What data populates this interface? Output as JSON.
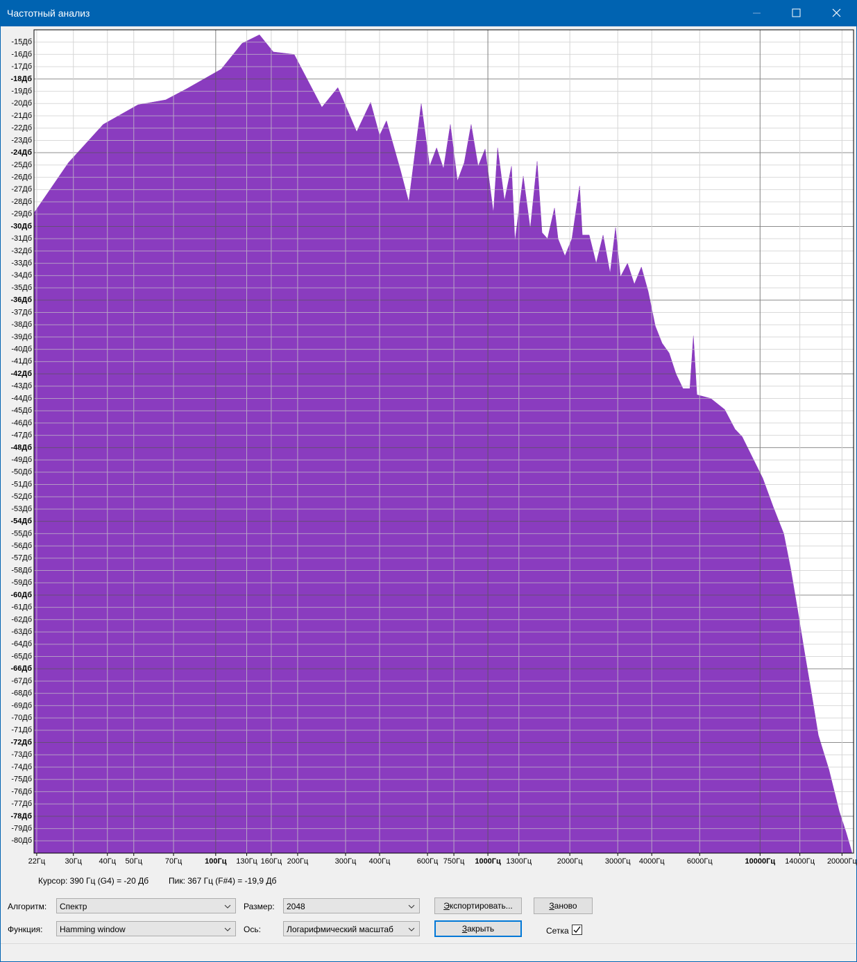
{
  "window": {
    "title": "Частотный анализ"
  },
  "chart_data": {
    "type": "area",
    "color": "#8a3cbf",
    "xscale": "log",
    "grid": true,
    "xlim": [
      21.5,
      22050
    ],
    "ylim": [
      -81,
      -14
    ],
    "xticks": [
      {
        "value": 22,
        "label": "22Гц"
      },
      {
        "value": 30,
        "label": "30Гц"
      },
      {
        "value": 40,
        "label": "40Гц"
      },
      {
        "value": 50,
        "label": "50Гц"
      },
      {
        "value": 70,
        "label": "70Гц"
      },
      {
        "value": 100,
        "label": "100Гц"
      },
      {
        "value": 130,
        "label": "130Гц"
      },
      {
        "value": 160,
        "label": "160Гц"
      },
      {
        "value": 200,
        "label": "200Гц"
      },
      {
        "value": 300,
        "label": "300Гц"
      },
      {
        "value": 400,
        "label": "400Гц"
      },
      {
        "value": 600,
        "label": "600Гц"
      },
      {
        "value": 750,
        "label": "750Гц"
      },
      {
        "value": 1000,
        "label": "1000Гц"
      },
      {
        "value": 1300,
        "label": "1300Гц"
      },
      {
        "value": 2000,
        "label": "2000Гц"
      },
      {
        "value": 3000,
        "label": "3000Гц"
      },
      {
        "value": 4000,
        "label": "4000Гц"
      },
      {
        "value": 6000,
        "label": "6000Гц"
      },
      {
        "value": 10000,
        "label": "10000Гц"
      },
      {
        "value": 14000,
        "label": "14000Гц"
      },
      {
        "value": 20000,
        "label": "20000Гц"
      }
    ],
    "yticks": [
      {
        "value": -15,
        "label": "-15Дб"
      },
      {
        "value": -16,
        "label": "-16Дб"
      },
      {
        "value": -17,
        "label": "-17Дб"
      },
      {
        "value": -18,
        "label": "-18Дб"
      },
      {
        "value": -19,
        "label": "-19Дб"
      },
      {
        "value": -20,
        "label": "-20Дб"
      },
      {
        "value": -21,
        "label": "-21Дб"
      },
      {
        "value": -22,
        "label": "-22Дб"
      },
      {
        "value": -23,
        "label": "-23Дб"
      },
      {
        "value": -24,
        "label": "-24Дб"
      },
      {
        "value": -25,
        "label": "-25Дб"
      },
      {
        "value": -26,
        "label": "-26Дб"
      },
      {
        "value": -27,
        "label": "-27Дб"
      },
      {
        "value": -28,
        "label": "-28Дб"
      },
      {
        "value": -29,
        "label": "-29Дб"
      },
      {
        "value": -30,
        "label": "-30Дб"
      },
      {
        "value": -31,
        "label": "-31Дб"
      },
      {
        "value": -32,
        "label": "-32Дб"
      },
      {
        "value": -33,
        "label": "-33Дб"
      },
      {
        "value": -34,
        "label": "-34Дб"
      },
      {
        "value": -35,
        "label": "-35Дб"
      },
      {
        "value": -36,
        "label": "-36Дб"
      },
      {
        "value": -37,
        "label": "-37Дб"
      },
      {
        "value": -38,
        "label": "-38Дб"
      },
      {
        "value": -39,
        "label": "-39Дб"
      },
      {
        "value": -40,
        "label": "-40Дб"
      },
      {
        "value": -41,
        "label": "-41Дб"
      },
      {
        "value": -42,
        "label": "-42Дб"
      },
      {
        "value": -43,
        "label": "-43Дб"
      },
      {
        "value": -44,
        "label": "-44Дб"
      },
      {
        "value": -45,
        "label": "-45Дб"
      },
      {
        "value": -46,
        "label": "-46Дб"
      },
      {
        "value": -47,
        "label": "-47Дб"
      },
      {
        "value": -48,
        "label": "-48Дб"
      },
      {
        "value": -49,
        "label": "-49Дб"
      },
      {
        "value": -50,
        "label": "-50Дб"
      },
      {
        "value": -51,
        "label": "-51Дб"
      },
      {
        "value": -52,
        "label": "-52Дб"
      },
      {
        "value": -53,
        "label": "-53Дб"
      },
      {
        "value": -54,
        "label": "-54Дб"
      },
      {
        "value": -55,
        "label": "-55Дб"
      },
      {
        "value": -56,
        "label": "-56Дб"
      },
      {
        "value": -57,
        "label": "-57Дб"
      },
      {
        "value": -58,
        "label": "-58Дб"
      },
      {
        "value": -59,
        "label": "-59Дб"
      },
      {
        "value": -60,
        "label": "-60Дб"
      },
      {
        "value": -61,
        "label": "-61Дб"
      },
      {
        "value": -62,
        "label": "-62Дб"
      },
      {
        "value": -63,
        "label": "-63Дб"
      },
      {
        "value": -64,
        "label": "-64Дб"
      },
      {
        "value": -65,
        "label": "-65Дб"
      },
      {
        "value": -66,
        "label": "-66Дб"
      },
      {
        "value": -67,
        "label": "-67Дб"
      },
      {
        "value": -68,
        "label": "-68Дб"
      },
      {
        "value": -69,
        "label": "-69Дб"
      },
      {
        "value": -70,
        "label": "-70Дб"
      },
      {
        "value": -71,
        "label": "-71Дб"
      },
      {
        "value": -72,
        "label": "-72Дб"
      },
      {
        "value": -73,
        "label": "-73Дб"
      },
      {
        "value": -74,
        "label": "-74Дб"
      },
      {
        "value": -75,
        "label": "-75Дб"
      },
      {
        "value": -76,
        "label": "-76Дб"
      },
      {
        "value": -77,
        "label": "-77Дб"
      },
      {
        "value": -78,
        "label": "-78Дб"
      },
      {
        "value": -79,
        "label": "-79Дб"
      },
      {
        "value": -80,
        "label": "-80Дб"
      }
    ],
    "x": [
      21.5,
      28.8,
      38.6,
      51.8,
      65.5,
      78.2,
      104.8,
      125,
      144.8,
      162.8,
      194.2,
      245.5,
      281,
      329.6,
      370.7,
      400,
      424,
      477,
      512,
      569,
      611,
      648,
      687,
      728,
      773,
      819,
      868,
      921,
      977,
      1048,
      1086,
      1151,
      1221,
      1257,
      1349,
      1431,
      1517,
      1581,
      1656,
      1757,
      1810,
      1919,
      2036,
      2173,
      2223,
      2356,
      2500,
      2650,
      2812,
      2945,
      3069,
      3258,
      3452,
      3664,
      3882,
      4121,
      4365,
      4634,
      4910,
      5212,
      5521,
      5689,
      5861,
      6592,
      7413,
      8091,
      8590,
      9376,
      10233,
      11169,
      12218,
      12942,
      13740,
      14555,
      15453,
      16368,
      17906,
      19543,
      20701,
      21727
    ],
    "values": [
      -28.9,
      -24.8,
      -21.7,
      -20.1,
      -19.7,
      -18.8,
      -17.2,
      -15.1,
      -14.4,
      -15.8,
      -16.0,
      -20.3,
      -18.7,
      -22.3,
      -19.9,
      -22.6,
      -21.4,
      -25.4,
      -28.0,
      -20.0,
      -25.1,
      -23.6,
      -25.3,
      -21.7,
      -26.3,
      -24.8,
      -21.7,
      -25.1,
      -23.7,
      -28.9,
      -23.6,
      -27.9,
      -25.1,
      -31.2,
      -25.9,
      -30.2,
      -24.7,
      -30.5,
      -31.0,
      -28.5,
      -31.0,
      -32.4,
      -31.0,
      -26.7,
      -30.7,
      -30.7,
      -33.0,
      -30.7,
      -33.8,
      -30.1,
      -34.1,
      -33.0,
      -34.7,
      -33.3,
      -35.3,
      -38.1,
      -39.5,
      -40.3,
      -42.0,
      -43.2,
      -43.2,
      -38.9,
      -43.7,
      -44.0,
      -44.9,
      -46.5,
      -47.1,
      -48.8,
      -50.5,
      -52.8,
      -55.0,
      -57.8,
      -61.2,
      -64.6,
      -68.0,
      -71.4,
      -74.2,
      -77.6,
      -79.3,
      -80.9
    ]
  },
  "status": {
    "cursor": "Курсор: 390 Гц (G4) = -20 Дб",
    "peak": "Пик: 367 Гц (F#4) = -19,9 Дб"
  },
  "controls": {
    "algorithm": {
      "label": "Алгоритм:",
      "value": "Спектр"
    },
    "size": {
      "label": "Размер:",
      "value": "2048"
    },
    "function": {
      "label": "Функция:",
      "value": "Hamming window"
    },
    "axis": {
      "label": "Ось:",
      "value": "Логарифмический масштаб"
    },
    "export": "Экспортировать...",
    "reset": "Заново",
    "close": "Закрыть",
    "grid": {
      "label": "Сетка",
      "checked": true
    }
  }
}
